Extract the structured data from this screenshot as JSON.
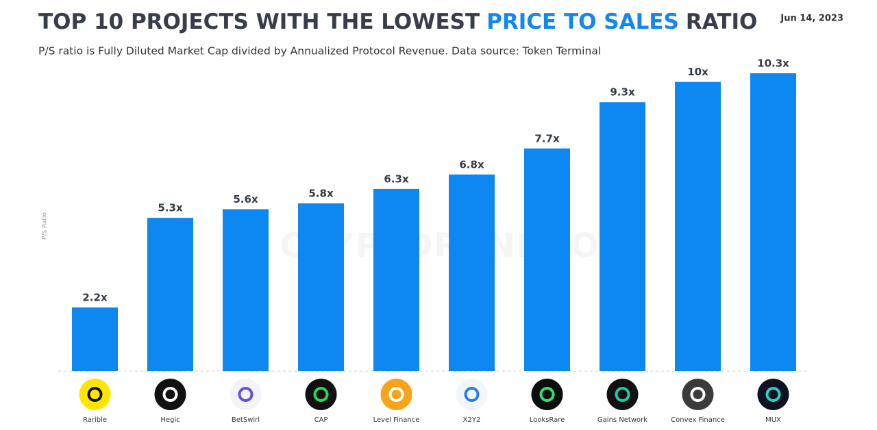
{
  "chart_data": {
    "type": "bar",
    "title": [
      "TOP 10 PROJECTS WITH THE LOWEST",
      "PRICE TO SALES",
      "RATIO"
    ],
    "subtitle": "P/S ratio is Fully Diluted Market Cap divided by Annualized Protocol Revenue. Data source: Token Terminal",
    "date": "Jun 14, 2023",
    "watermark": "CRYPTORANK.IO",
    "y_label": "P/S Ratio",
    "categories": [
      "Rarible",
      "Hegic",
      "BetSwirl",
      "CAP",
      "Level Finance",
      "X2Y2",
      "LooksRare",
      "Gains Network",
      "Convex Finance",
      "MUX"
    ],
    "values": [
      2.2,
      5.3,
      5.6,
      5.8,
      6.3,
      6.8,
      7.7,
      9.3,
      10,
      10.3
    ],
    "value_labels": [
      "2.2x",
      "5.3x",
      "5.6x",
      "5.8x",
      "6.3x",
      "6.8x",
      "7.7x",
      "9.3x",
      "10x",
      "10.3x"
    ],
    "color": "#0d87f2"
  }
}
